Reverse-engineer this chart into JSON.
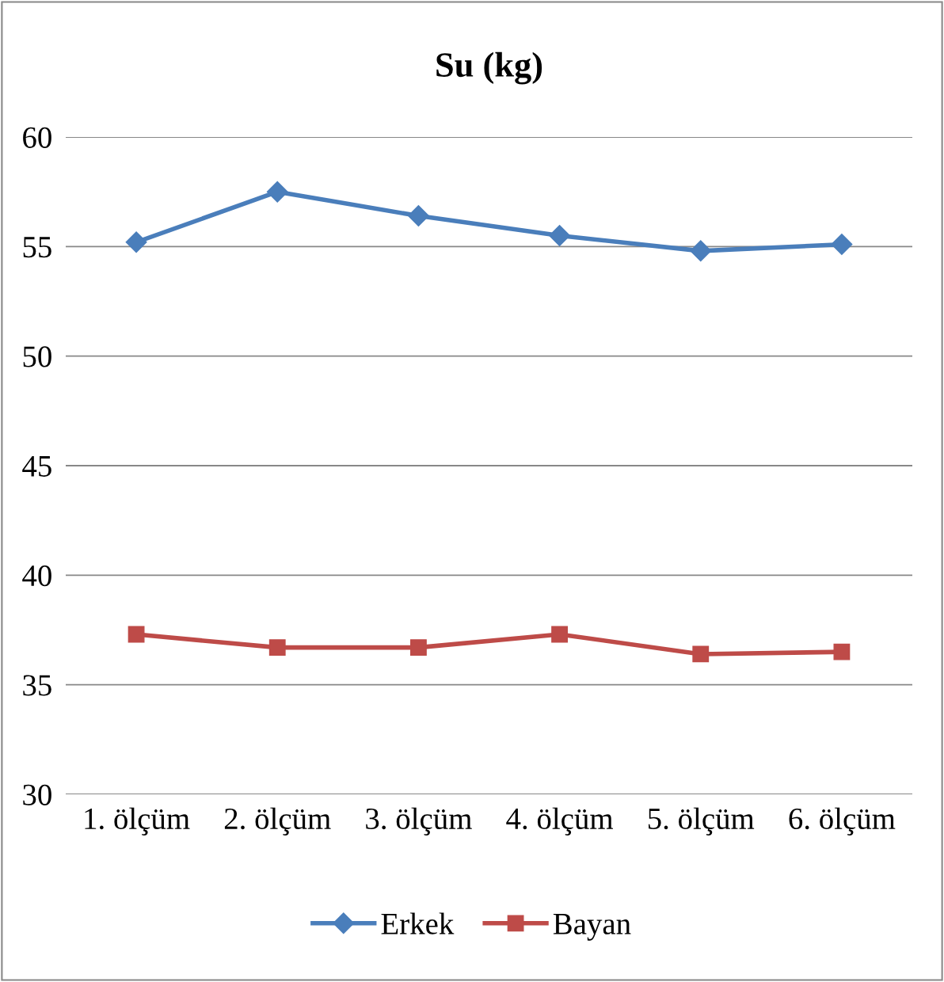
{
  "chart_data": {
    "type": "line",
    "title": "Su (kg)",
    "categories": [
      "1. ölçüm",
      "2. ölçüm",
      "3. ölçüm",
      "4. ölçüm",
      "5. ölçüm",
      "6. ölçüm"
    ],
    "series": [
      {
        "name": "Erkek",
        "color": "#4a7ebb",
        "marker": "diamond",
        "values": [
          55.2,
          57.5,
          56.4,
          55.5,
          54.8,
          55.1
        ]
      },
      {
        "name": "Bayan",
        "color": "#be4b48",
        "marker": "square",
        "values": [
          37.3,
          36.7,
          36.7,
          37.3,
          36.4,
          36.5
        ]
      }
    ],
    "ylim": [
      30,
      60
    ],
    "yticks": [
      30,
      35,
      40,
      45,
      50,
      55,
      60
    ],
    "grid": "y",
    "legend": "bottom",
    "line_style": "solid"
  }
}
